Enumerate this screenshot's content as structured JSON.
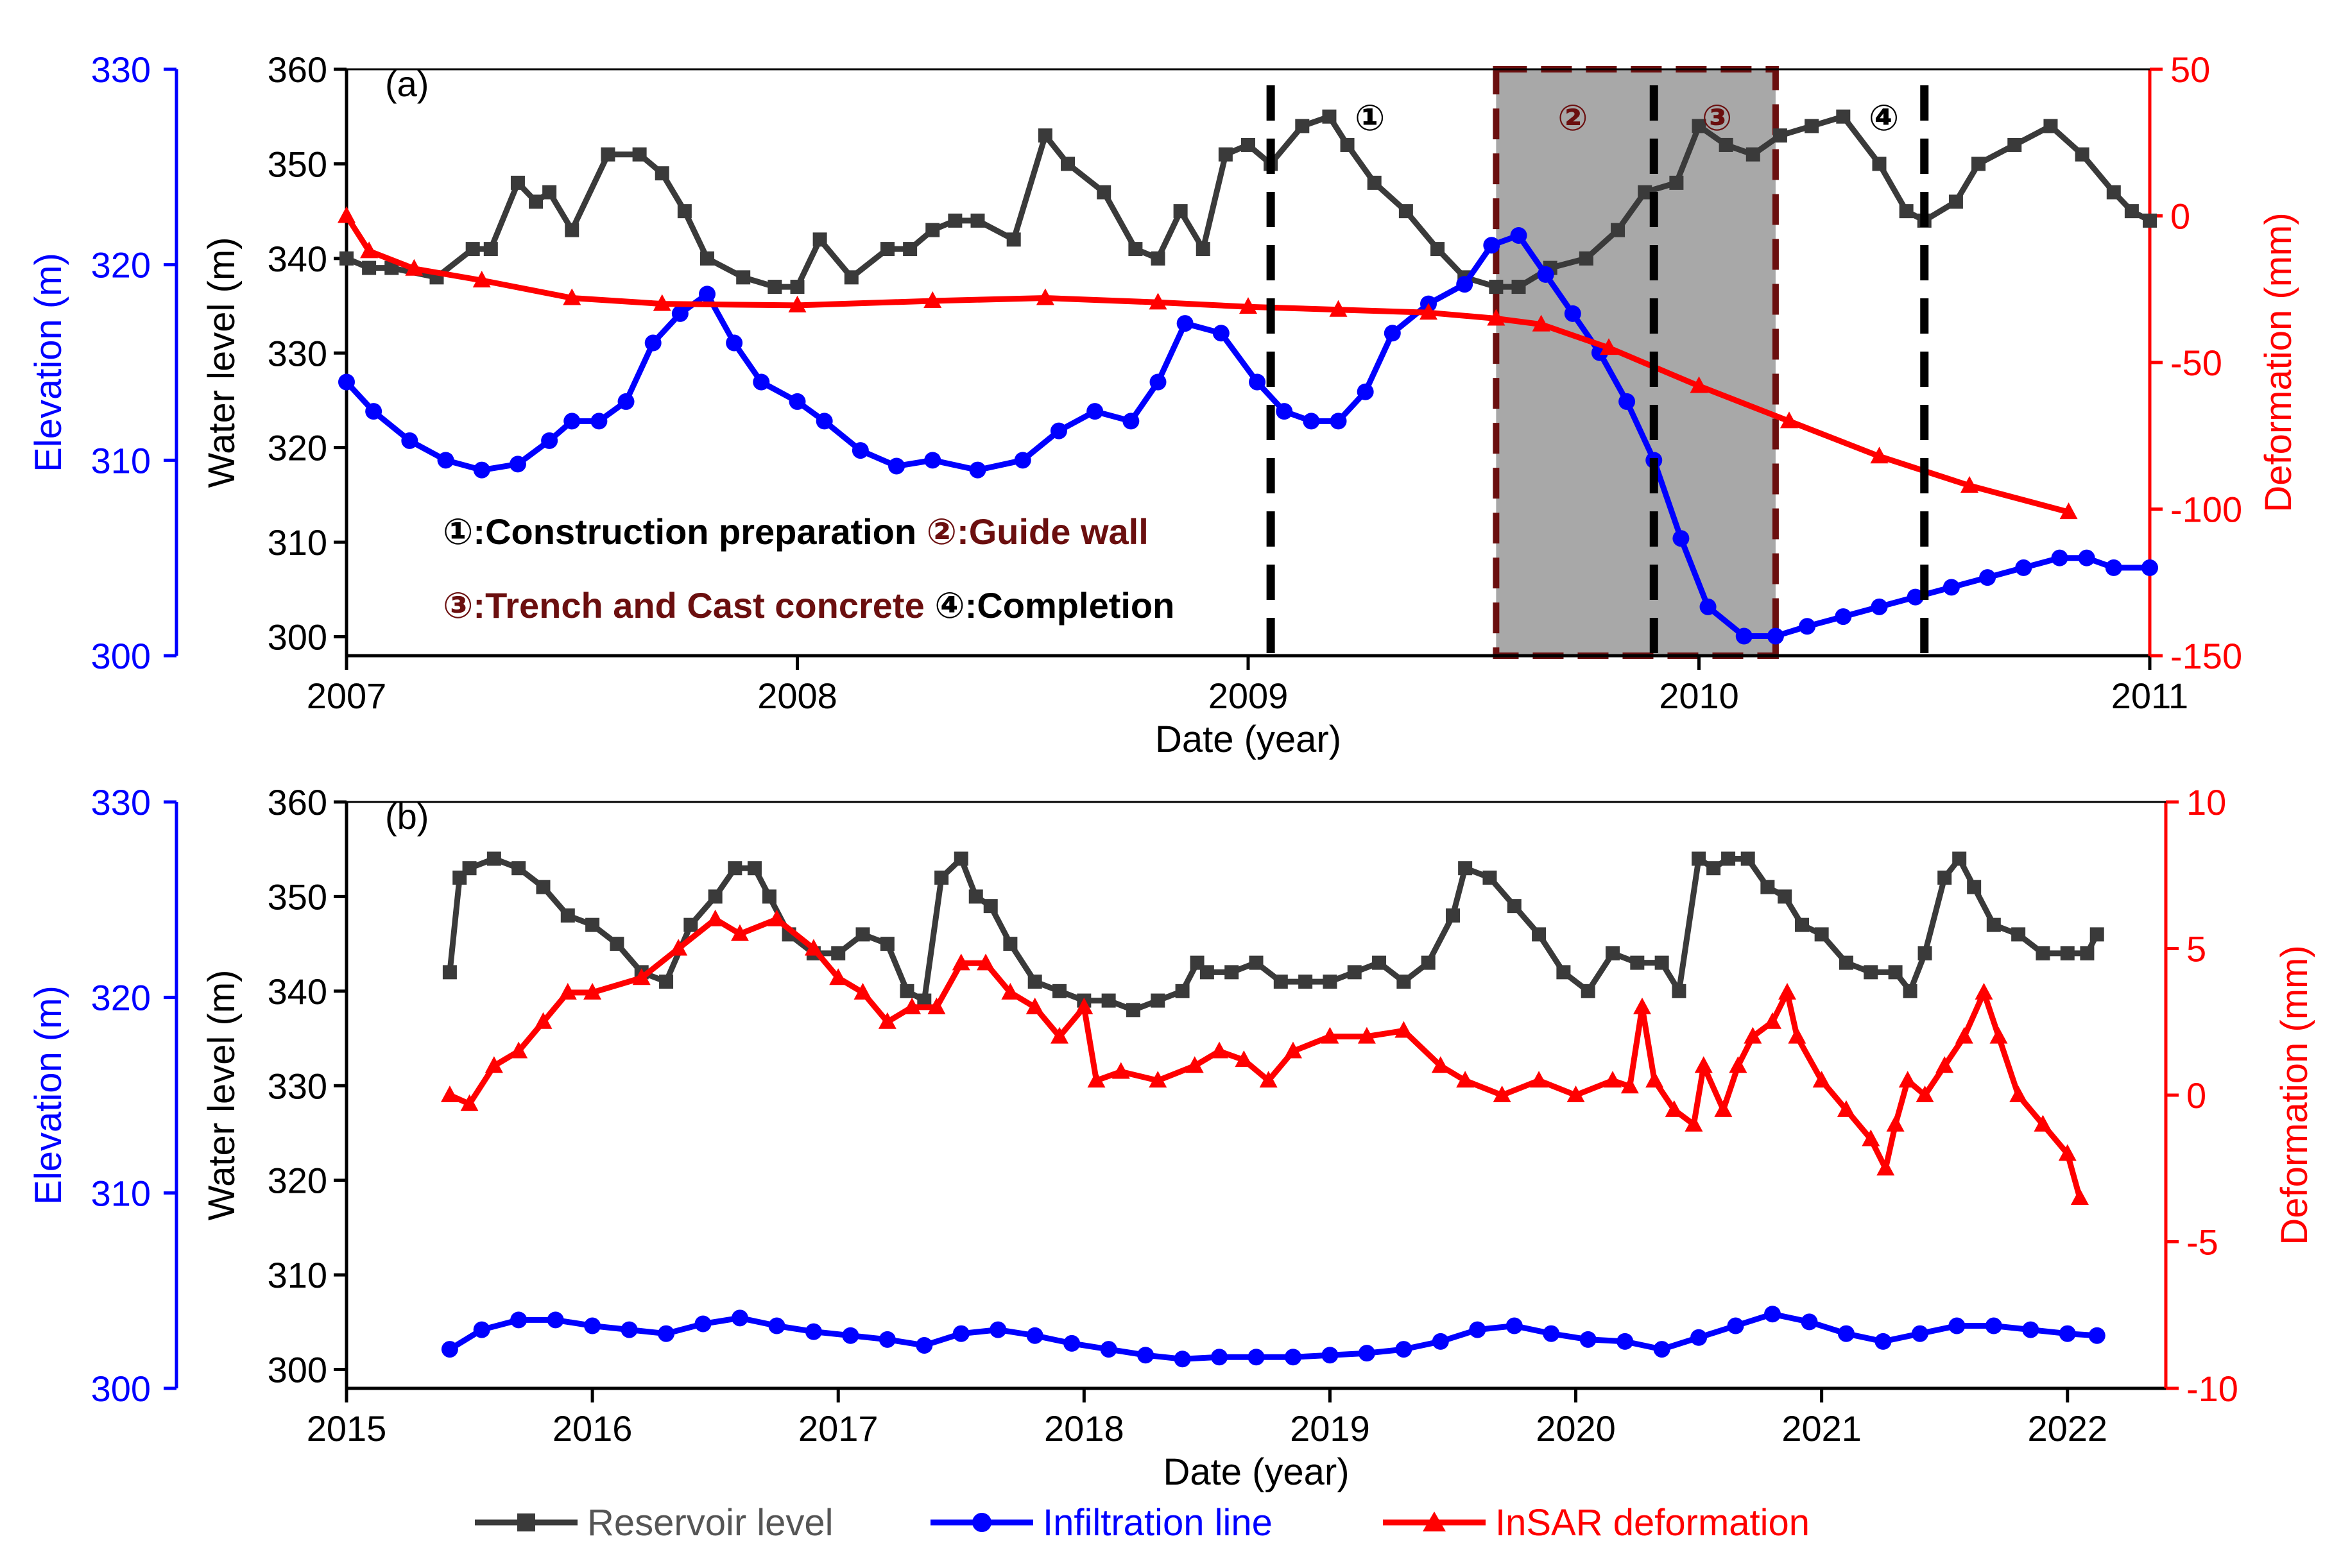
{
  "figure": {
    "legend": [
      {
        "label": "Reservoir level",
        "color": "#3a3a3a",
        "marker": "square"
      },
      {
        "label": "Infiltration line",
        "color": "#0000ff",
        "marker": "circle"
      },
      {
        "label": "InSAR deformation",
        "color": "#ff0000",
        "marker": "triangle"
      }
    ]
  },
  "chart_data": [
    {
      "type": "line",
      "panel": "(a)",
      "xlabel": "Date (year)",
      "ylabel_outer_left": "Elevation (m)",
      "ylabel_inner_left": "Water level (m)",
      "ylabel_right": "Deformation (mm)",
      "xlim": [
        2007,
        2011
      ],
      "x_ticks": [
        "2007",
        "2008",
        "2009",
        "2010",
        "2011"
      ],
      "ylim_water_level": [
        298,
        360
      ],
      "ticks_water_level": [
        "300",
        "310",
        "320",
        "330",
        "340",
        "350",
        "360"
      ],
      "ylim_elevation": [
        300,
        330
      ],
      "ticks_elevation": [
        "300",
        "310",
        "320",
        "330"
      ],
      "ylim_deformation": [
        -150,
        50
      ],
      "ticks_deformation": [
        "-150",
        "-100",
        "-50",
        "0",
        "50"
      ],
      "colors": {
        "reservoir": "#3a3a3a",
        "infiltration": "#0000ff",
        "insar": "#ff0000",
        "stage_box": "#a8a8a8",
        "stage_border": "#6b0f0f",
        "dashed": "#000000"
      },
      "vertical_dashed_lines": [
        2009.05,
        2009.9,
        2010.5
      ],
      "shaded_region": [
        2009.55,
        2010.17
      ],
      "stage_markers": [
        {
          "label": "①",
          "x": 2009.27,
          "color": "#000000"
        },
        {
          "label": "②",
          "x": 2009.72,
          "color": "#6b0f0f"
        },
        {
          "label": "③",
          "x": 2010.04,
          "color": "#6b0f0f"
        },
        {
          "label": "④",
          "x": 2010.41,
          "color": "#000000"
        }
      ],
      "annotations": [
        {
          "parts": [
            {
              "text": "①:Construction preparation",
              "color": "#000000"
            },
            {
              "text": "  ②:Guide wall",
              "color": "#6b0f0f"
            }
          ]
        },
        {
          "parts": [
            {
              "text": "③:Trench and Cast concrete",
              "color": "#6b0f0f"
            },
            {
              "text": " ④:Completion",
              "color": "#000000"
            }
          ]
        }
      ],
      "series": [
        {
          "name": "Reservoir level",
          "axis": "water_level",
          "x": [
            2007.0,
            2007.05,
            2007.1,
            2007.2,
            2007.28,
            2007.32,
            2007.38,
            2007.42,
            2007.45,
            2007.5,
            2007.58,
            2007.65,
            2007.7,
            2007.75,
            2007.8,
            2007.88,
            2007.95,
            2008.0,
            2008.05,
            2008.12,
            2008.2,
            2008.25,
            2008.3,
            2008.35,
            2008.4,
            2008.48,
            2008.55,
            2008.6,
            2008.68,
            2008.75,
            2008.8,
            2008.85,
            2008.9,
            2008.95,
            2009.0,
            2009.05,
            2009.12,
            2009.18,
            2009.22,
            2009.28,
            2009.35,
            2009.42,
            2009.48,
            2009.55,
            2009.6,
            2009.67,
            2009.75,
            2009.82,
            2009.88,
            2009.95,
            2010.0,
            2010.06,
            2010.12,
            2010.18,
            2010.25,
            2010.32,
            2010.4,
            2010.46,
            2010.5,
            2010.57,
            2010.62,
            2010.7,
            2010.78,
            2010.85,
            2010.92,
            2010.96,
            2011.0
          ],
          "values": [
            340,
            339,
            339,
            338,
            341,
            341,
            348,
            346,
            347,
            343,
            351,
            351,
            349,
            345,
            340,
            338,
            337,
            337,
            342,
            338,
            341,
            341,
            343,
            344,
            344,
            342,
            353,
            350,
            347,
            341,
            340,
            345,
            341,
            351,
            352,
            350,
            354,
            355,
            352,
            348,
            345,
            341,
            338,
            337,
            337,
            339,
            340,
            343,
            347,
            348,
            354,
            352,
            351,
            353,
            354,
            355,
            350,
            345,
            344,
            346,
            350,
            352,
            354,
            351,
            347,
            345,
            344
          ]
        },
        {
          "name": "Infiltration line",
          "axis": "elevation",
          "x": [
            2007.0,
            2007.06,
            2007.14,
            2007.22,
            2007.3,
            2007.38,
            2007.45,
            2007.5,
            2007.56,
            2007.62,
            2007.68,
            2007.74,
            2007.8,
            2007.86,
            2007.92,
            2008.0,
            2008.06,
            2008.14,
            2008.22,
            2008.3,
            2008.4,
            2008.5,
            2008.58,
            2008.66,
            2008.74,
            2008.8,
            2008.86,
            2008.94,
            2009.02,
            2009.08,
            2009.14,
            2009.2,
            2009.26,
            2009.32,
            2009.4,
            2009.48,
            2009.54,
            2009.6,
            2009.66,
            2009.72,
            2009.78,
            2009.84,
            2009.9,
            2009.96,
            2010.02,
            2010.1,
            2010.17,
            2010.24,
            2010.32,
            2010.4,
            2010.48,
            2010.56,
            2010.64,
            2010.72,
            2010.8,
            2010.86,
            2010.92,
            2011.0
          ],
          "values": [
            314,
            312.5,
            311,
            310,
            309.5,
            309.8,
            311,
            312,
            312,
            313,
            316,
            317.5,
            318.5,
            316,
            314,
            313,
            312,
            310.5,
            309.7,
            310,
            309.5,
            310,
            311.5,
            312.5,
            312,
            314,
            317,
            316.5,
            314,
            312.5,
            312,
            312,
            313.5,
            316.5,
            318,
            319,
            321,
            321.5,
            319.5,
            317.5,
            315.5,
            313,
            310,
            306,
            302.5,
            301,
            301,
            301.5,
            302,
            302.5,
            303,
            303.5,
            304,
            304.5,
            305,
            305,
            304.5,
            304.5
          ]
        },
        {
          "name": "InSAR deformation",
          "axis": "deformation",
          "x": [
            2007.0,
            2007.05,
            2007.15,
            2007.3,
            2007.5,
            2007.7,
            2008.0,
            2008.3,
            2008.55,
            2008.8,
            2009.0,
            2009.2,
            2009.4,
            2009.55,
            2009.65,
            2009.8,
            2010.0,
            2010.2,
            2010.4,
            2010.6,
            2010.82
          ],
          "values": [
            0,
            -12,
            -18,
            -22,
            -28,
            -30,
            -30.5,
            -29,
            -28,
            -29.5,
            -31,
            -32,
            -33,
            -35,
            -37,
            -45,
            -58,
            -70,
            -82,
            -92,
            -101
          ]
        }
      ]
    },
    {
      "type": "line",
      "panel": "(b)",
      "xlabel": "Date (year)",
      "ylabel_outer_left": "Elevation (m)",
      "ylabel_inner_left": "Water level (m)",
      "ylabel_right": "Deformation (mm)",
      "xlim": [
        2015,
        2022.4
      ],
      "x_ticks": [
        "2015",
        "2016",
        "2017",
        "2018",
        "2019",
        "2020",
        "2021",
        "2022"
      ],
      "ylim_water_level": [
        298,
        360
      ],
      "ticks_water_level": [
        "300",
        "310",
        "320",
        "330",
        "340",
        "350",
        "360"
      ],
      "ylim_elevation": [
        300,
        330
      ],
      "ticks_elevation": [
        "300",
        "310",
        "320",
        "330"
      ],
      "ylim_deformation": [
        -10,
        10
      ],
      "ticks_deformation": [
        "-10",
        "-5",
        "0",
        "5",
        "10"
      ],
      "colors": {
        "reservoir": "#3a3a3a",
        "infiltration": "#0000ff",
        "insar": "#ff0000"
      },
      "series": [
        {
          "name": "Reservoir level",
          "axis": "water_level",
          "x": [
            2015.42,
            2015.46,
            2015.5,
            2015.6,
            2015.7,
            2015.8,
            2015.9,
            2016.0,
            2016.1,
            2016.2,
            2016.3,
            2016.4,
            2016.5,
            2016.58,
            2016.66,
            2016.72,
            2016.8,
            2016.9,
            2017.0,
            2017.1,
            2017.2,
            2017.28,
            2017.35,
            2017.42,
            2017.5,
            2017.56,
            2017.62,
            2017.7,
            2017.8,
            2017.9,
            2018.0,
            2018.1,
            2018.2,
            2018.3,
            2018.4,
            2018.46,
            2018.5,
            2018.6,
            2018.7,
            2018.8,
            2018.9,
            2019.0,
            2019.1,
            2019.2,
            2019.3,
            2019.4,
            2019.5,
            2019.55,
            2019.65,
            2019.75,
            2019.85,
            2019.95,
            2020.05,
            2020.15,
            2020.25,
            2020.35,
            2020.42,
            2020.5,
            2020.56,
            2020.62,
            2020.7,
            2020.78,
            2020.85,
            2020.92,
            2021.0,
            2021.1,
            2021.2,
            2021.3,
            2021.36,
            2021.42,
            2021.5,
            2021.56,
            2021.62,
            2021.7,
            2021.8,
            2021.9,
            2022.0,
            2022.08,
            2022.12
          ],
          "values": [
            342,
            352,
            353,
            354,
            353,
            351,
            348,
            347,
            345,
            342,
            341,
            347,
            350,
            353,
            353,
            350,
            346,
            344,
            344,
            346,
            345,
            340,
            339,
            352,
            354,
            350,
            349,
            345,
            341,
            340,
            339,
            339,
            338,
            339,
            340,
            343,
            342,
            342,
            343,
            341,
            341,
            341,
            342,
            343,
            341,
            343,
            348,
            353,
            352,
            349,
            346,
            342,
            340,
            344,
            343,
            343,
            340,
            354,
            353,
            354,
            354,
            351,
            350,
            347,
            346,
            343,
            342,
            342,
            340,
            344,
            352,
            354,
            351,
            347,
            346,
            344,
            344,
            344,
            346
          ]
        },
        {
          "name": "Infiltration line",
          "axis": "elevation",
          "x": [
            2015.42,
            2015.55,
            2015.7,
            2015.85,
            2016.0,
            2016.15,
            2016.3,
            2016.45,
            2016.6,
            2016.75,
            2016.9,
            2017.05,
            2017.2,
            2017.35,
            2017.5,
            2017.65,
            2017.8,
            2017.95,
            2018.1,
            2018.25,
            2018.4,
            2018.55,
            2018.7,
            2018.85,
            2019.0,
            2019.15,
            2019.3,
            2019.45,
            2019.6,
            2019.75,
            2019.9,
            2020.05,
            2020.2,
            2020.35,
            2020.5,
            2020.65,
            2020.8,
            2020.95,
            2021.1,
            2021.25,
            2021.4,
            2021.55,
            2021.7,
            2021.85,
            2022.0,
            2022.12
          ],
          "values": [
            302,
            303,
            303.5,
            303.5,
            303.2,
            303,
            302.8,
            303.3,
            303.6,
            303.2,
            302.9,
            302.7,
            302.5,
            302.2,
            302.8,
            303,
            302.7,
            302.3,
            302,
            301.7,
            301.5,
            301.6,
            301.6,
            301.6,
            301.7,
            301.8,
            302,
            302.4,
            303,
            303.2,
            302.8,
            302.5,
            302.4,
            302,
            302.6,
            303.2,
            303.8,
            303.4,
            302.8,
            302.4,
            302.8,
            303.2,
            303.2,
            303,
            302.8,
            302.7
          ]
        },
        {
          "name": "InSAR deformation",
          "axis": "deformation",
          "x": [
            2015.42,
            2015.5,
            2015.6,
            2015.7,
            2015.8,
            2015.9,
            2016.0,
            2016.2,
            2016.35,
            2016.5,
            2016.6,
            2016.75,
            2016.9,
            2017.0,
            2017.1,
            2017.2,
            2017.3,
            2017.4,
            2017.5,
            2017.6,
            2017.7,
            2017.8,
            2017.9,
            2018.0,
            2018.05,
            2018.15,
            2018.3,
            2018.45,
            2018.55,
            2018.65,
            2018.75,
            2018.85,
            2019.0,
            2019.15,
            2019.3,
            2019.45,
            2019.55,
            2019.7,
            2019.85,
            2020.0,
            2020.15,
            2020.22,
            2020.27,
            2020.32,
            2020.4,
            2020.48,
            2020.52,
            2020.6,
            2020.66,
            2020.72,
            2020.8,
            2020.86,
            2020.9,
            2021.0,
            2021.1,
            2021.2,
            2021.26,
            2021.3,
            2021.35,
            2021.42,
            2021.5,
            2021.58,
            2021.66,
            2021.72,
            2021.8,
            2021.9,
            2022.0,
            2022.05
          ],
          "values": [
            0,
            -0.3,
            1,
            1.5,
            2.5,
            3.5,
            3.5,
            4,
            5,
            6,
            5.5,
            6,
            5,
            4,
            3.5,
            2.5,
            3,
            3,
            4.5,
            4.5,
            3.5,
            3,
            2,
            3,
            0.5,
            0.8,
            0.5,
            1,
            1.5,
            1.2,
            0.5,
            1.5,
            2,
            2,
            2.2,
            1,
            0.5,
            0,
            0.5,
            0,
            0.5,
            0.3,
            3,
            0.5,
            -0.5,
            -1,
            1,
            -0.5,
            1,
            2,
            2.5,
            3.5,
            2,
            0.5,
            -0.5,
            -1.5,
            -2.5,
            -1,
            0.5,
            0,
            1,
            2,
            3.5,
            2,
            0,
            -1,
            -2,
            -3.5
          ]
        }
      ]
    }
  ]
}
